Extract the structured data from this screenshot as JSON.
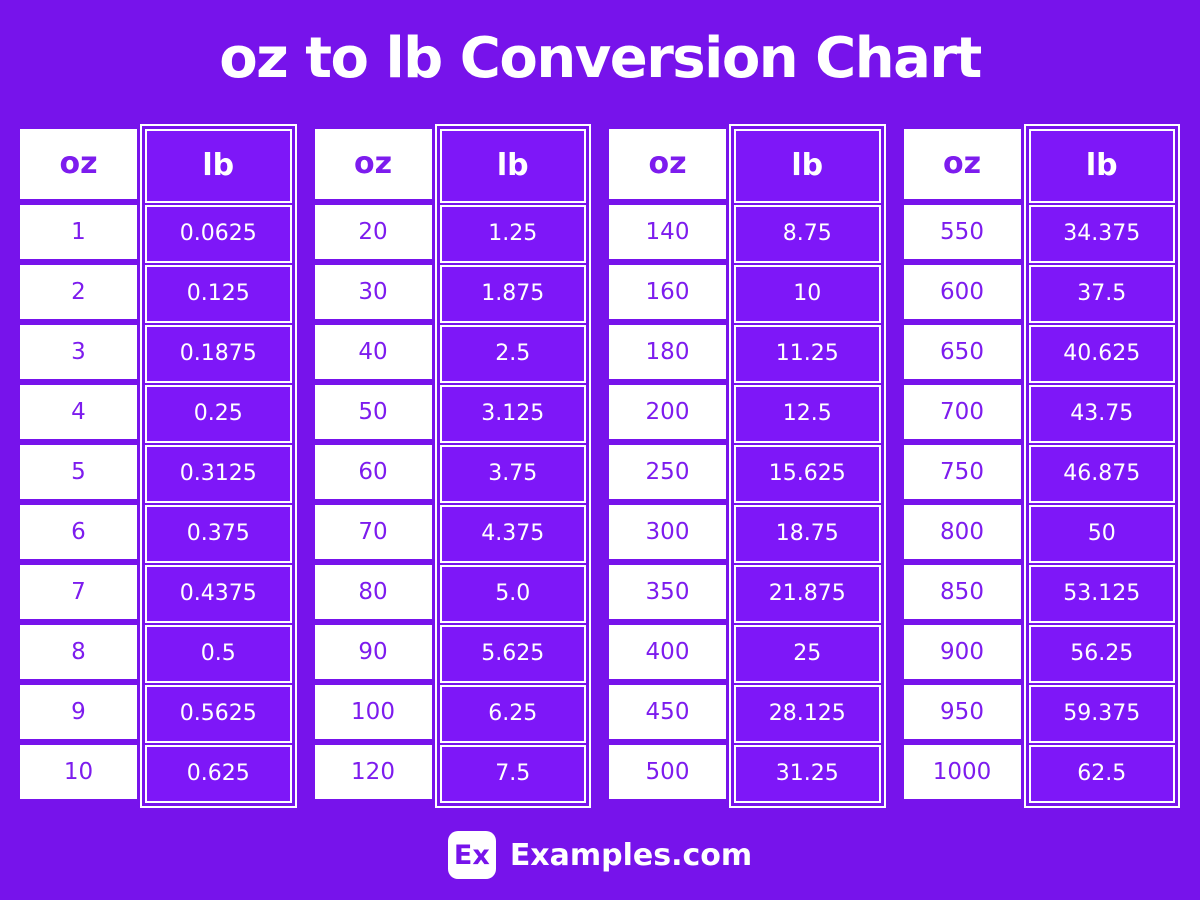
{
  "colors": {
    "background": "#7713EB",
    "cell_purple": "#7E17F8",
    "accent_text_purple": "#7D1CEE",
    "white": "#FFFFFF"
  },
  "chart_data": {
    "type": "table",
    "title": "oz to lb Conversion Chart",
    "columns": [
      "oz",
      "lb"
    ],
    "tables": [
      {
        "headers": {
          "oz": "oz",
          "lb": "lb"
        },
        "rows": [
          {
            "oz": "1",
            "lb": "0.0625"
          },
          {
            "oz": "2",
            "lb": "0.125"
          },
          {
            "oz": "3",
            "lb": "0.1875"
          },
          {
            "oz": "4",
            "lb": "0.25"
          },
          {
            "oz": "5",
            "lb": "0.3125"
          },
          {
            "oz": "6",
            "lb": "0.375"
          },
          {
            "oz": "7",
            "lb": "0.4375"
          },
          {
            "oz": "8",
            "lb": "0.5"
          },
          {
            "oz": "9",
            "lb": "0.5625"
          },
          {
            "oz": "10",
            "lb": "0.625"
          }
        ]
      },
      {
        "headers": {
          "oz": "oz",
          "lb": "lb"
        },
        "rows": [
          {
            "oz": "20",
            "lb": "1.25"
          },
          {
            "oz": "30",
            "lb": "1.875"
          },
          {
            "oz": "40",
            "lb": "2.5"
          },
          {
            "oz": "50",
            "lb": "3.125"
          },
          {
            "oz": "60",
            "lb": "3.75"
          },
          {
            "oz": "70",
            "lb": "4.375"
          },
          {
            "oz": "80",
            "lb": "5.0"
          },
          {
            "oz": "90",
            "lb": "5.625"
          },
          {
            "oz": "100",
            "lb": "6.25"
          },
          {
            "oz": "120",
            "lb": "7.5"
          }
        ]
      },
      {
        "headers": {
          "oz": "oz",
          "lb": "lb"
        },
        "rows": [
          {
            "oz": "140",
            "lb": "8.75"
          },
          {
            "oz": "160",
            "lb": "10"
          },
          {
            "oz": "180",
            "lb": "11.25"
          },
          {
            "oz": "200",
            "lb": "12.5"
          },
          {
            "oz": "250",
            "lb": "15.625"
          },
          {
            "oz": "300",
            "lb": "18.75"
          },
          {
            "oz": "350",
            "lb": "21.875"
          },
          {
            "oz": "400",
            "lb": "25"
          },
          {
            "oz": "450",
            "lb": "28.125"
          },
          {
            "oz": "500",
            "lb": "31.25"
          }
        ]
      },
      {
        "headers": {
          "oz": "oz",
          "lb": "lb"
        },
        "rows": [
          {
            "oz": "550",
            "lb": "34.375"
          },
          {
            "oz": "600",
            "lb": "37.5"
          },
          {
            "oz": "650",
            "lb": "40.625"
          },
          {
            "oz": "700",
            "lb": "43.75"
          },
          {
            "oz": "750",
            "lb": "46.875"
          },
          {
            "oz": "800",
            "lb": "50"
          },
          {
            "oz": "850",
            "lb": "53.125"
          },
          {
            "oz": "900",
            "lb": "56.25"
          },
          {
            "oz": "950",
            "lb": "59.375"
          },
          {
            "oz": "1000",
            "lb": "62.5"
          }
        ]
      }
    ]
  },
  "footer": {
    "logo_text": "Ex",
    "site_name": "Examples.com"
  }
}
